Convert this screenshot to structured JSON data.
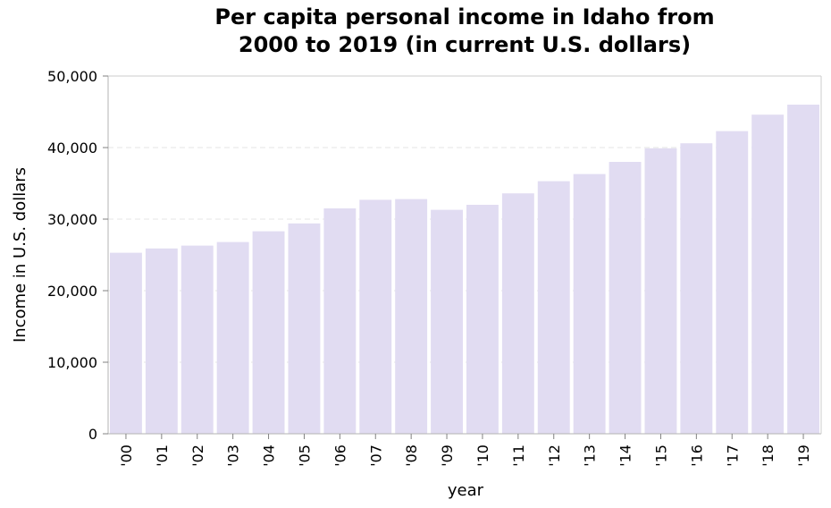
{
  "chart_data": {
    "type": "bar",
    "title": "Per capita personal income in Idaho from\n2000 to 2019 (in current U.S. dollars)",
    "xlabel": "year",
    "ylabel": "Income in U.S. dollars",
    "categories": [
      "'00",
      "'01",
      "'02",
      "'03",
      "'04",
      "'05",
      "'06",
      "'07",
      "'08",
      "'09",
      "'10",
      "'11",
      "'12",
      "'13",
      "'14",
      "'15",
      "'16",
      "'17",
      "'18",
      "'19"
    ],
    "values": [
      25300,
      25900,
      26300,
      26800,
      28300,
      29400,
      31500,
      32700,
      32800,
      31300,
      32000,
      33600,
      35300,
      36300,
      38000,
      39900,
      40600,
      42300,
      44600,
      46000
    ],
    "ylim": [
      0,
      50000
    ],
    "yticks": [
      0,
      10000,
      20000,
      30000,
      40000,
      50000
    ],
    "ytick_labels": [
      "0",
      "10,000",
      "20,000",
      "30,000",
      "40,000",
      "50,000"
    ],
    "grid": "horizontal dashed",
    "bar_color": "#e1dcf2"
  }
}
